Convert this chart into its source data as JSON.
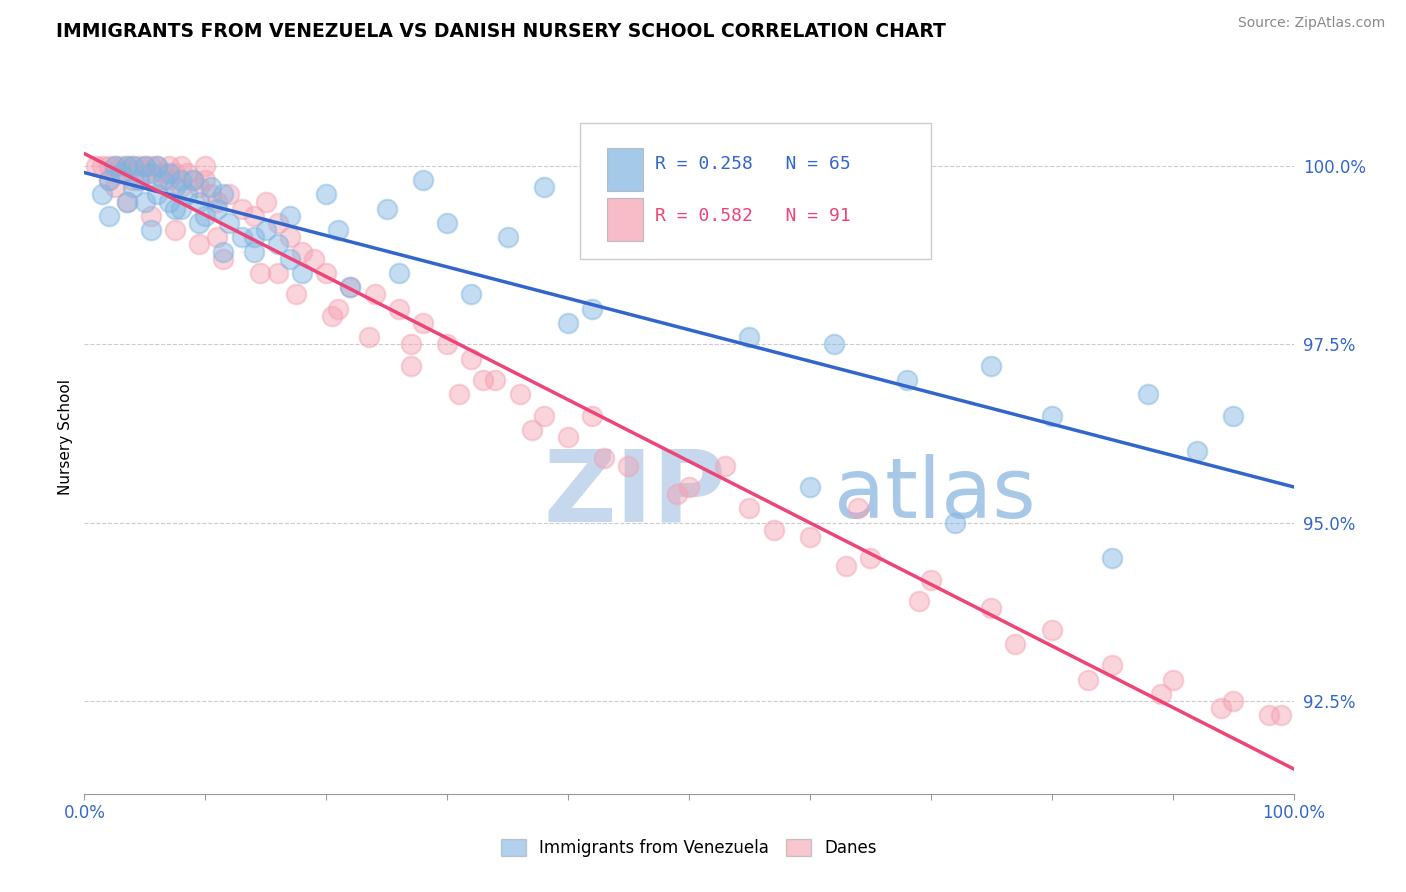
{
  "title": "IMMIGRANTS FROM VENEZUELA VS DANISH NURSERY SCHOOL CORRELATION CHART",
  "source_text": "Source: ZipAtlas.com",
  "ylabel": "Nursery School",
  "xlim": [
    0.0,
    100.0
  ],
  "ylim": [
    91.2,
    101.2
  ],
  "yticks": [
    92.5,
    95.0,
    97.5,
    100.0
  ],
  "ytick_labels": [
    "92.5%",
    "95.0%",
    "97.5%",
    "100.0%"
  ],
  "legend_r_blue": "R = 0.258",
  "legend_n_blue": "N = 65",
  "legend_r_pink": "R = 0.582",
  "legend_n_pink": "N = 91",
  "blue_color": "#7EB3E0",
  "pink_color": "#F4A0B0",
  "blue_line_color": "#3366CC",
  "pink_line_color": "#EE4477",
  "watermark_zip_color": "#C5D8EE",
  "watermark_atlas_color": "#A8C8E8",
  "blue_scatter_x": [
    1.5,
    2.0,
    2.5,
    3.0,
    3.5,
    4.0,
    4.0,
    4.5,
    5.0,
    5.0,
    5.5,
    6.0,
    6.0,
    6.5,
    7.0,
    7.0,
    7.5,
    8.0,
    8.0,
    8.5,
    9.0,
    9.5,
    10.0,
    10.5,
    11.0,
    11.5,
    12.0,
    13.0,
    14.0,
    15.0,
    16.0,
    17.0,
    18.0,
    20.0,
    22.0,
    25.0,
    28.0,
    30.0,
    35.0,
    38.0,
    2.0,
    3.5,
    5.5,
    7.5,
    9.5,
    11.5,
    14.0,
    17.0,
    21.0,
    26.0,
    32.0,
    40.0,
    50.0,
    62.0,
    75.0,
    88.0,
    95.0,
    42.0,
    55.0,
    68.0,
    80.0,
    92.0,
    60.0,
    72.0,
    85.0
  ],
  "blue_scatter_y": [
    99.6,
    99.8,
    100.0,
    99.9,
    100.0,
    99.7,
    100.0,
    99.8,
    99.5,
    100.0,
    99.9,
    99.6,
    100.0,
    99.8,
    99.5,
    99.9,
    99.7,
    99.4,
    99.8,
    99.6,
    99.8,
    99.5,
    99.3,
    99.7,
    99.4,
    99.6,
    99.2,
    99.0,
    98.8,
    99.1,
    98.9,
    98.7,
    98.5,
    99.6,
    98.3,
    99.4,
    99.8,
    99.2,
    99.0,
    99.7,
    99.3,
    99.5,
    99.1,
    99.4,
    99.2,
    98.8,
    99.0,
    99.3,
    99.1,
    98.5,
    98.2,
    97.8,
    98.9,
    97.5,
    97.2,
    96.8,
    96.5,
    98.0,
    97.6,
    97.0,
    96.5,
    96.0,
    95.5,
    95.0,
    94.5
  ],
  "pink_scatter_x": [
    1.0,
    1.5,
    2.0,
    2.0,
    2.5,
    3.0,
    3.0,
    3.5,
    4.0,
    4.0,
    4.5,
    5.0,
    5.0,
    5.5,
    6.0,
    6.0,
    6.5,
    7.0,
    7.0,
    7.5,
    8.0,
    8.0,
    8.5,
    9.0,
    9.5,
    10.0,
    10.0,
    10.5,
    11.0,
    12.0,
    13.0,
    14.0,
    15.0,
    16.0,
    17.0,
    18.0,
    19.0,
    20.0,
    22.0,
    24.0,
    26.0,
    28.0,
    30.0,
    32.0,
    34.0,
    36.0,
    38.0,
    40.0,
    45.0,
    50.0,
    55.0,
    60.0,
    65.0,
    70.0,
    75.0,
    80.0,
    85.0,
    90.0,
    95.0,
    99.0,
    2.5,
    3.5,
    5.5,
    7.5,
    9.5,
    11.5,
    14.5,
    17.5,
    20.5,
    23.5,
    27.0,
    31.0,
    37.0,
    43.0,
    49.0,
    57.0,
    63.0,
    69.0,
    77.0,
    83.0,
    89.0,
    94.0,
    98.0,
    11.0,
    16.0,
    21.0,
    27.0,
    33.0,
    42.0,
    53.0,
    64.0
  ],
  "pink_scatter_y": [
    100.0,
    100.0,
    100.0,
    99.8,
    100.0,
    100.0,
    99.9,
    100.0,
    100.0,
    99.8,
    100.0,
    100.0,
    99.9,
    100.0,
    100.0,
    99.8,
    99.9,
    100.0,
    99.8,
    99.9,
    100.0,
    99.7,
    99.9,
    99.8,
    99.7,
    100.0,
    99.8,
    99.6,
    99.5,
    99.6,
    99.4,
    99.3,
    99.5,
    99.2,
    99.0,
    98.8,
    98.7,
    98.5,
    98.3,
    98.2,
    98.0,
    97.8,
    97.5,
    97.3,
    97.0,
    96.8,
    96.5,
    96.2,
    95.8,
    95.5,
    95.2,
    94.8,
    94.5,
    94.2,
    93.8,
    93.5,
    93.0,
    92.8,
    92.5,
    92.3,
    99.7,
    99.5,
    99.3,
    99.1,
    98.9,
    98.7,
    98.5,
    98.2,
    97.9,
    97.6,
    97.2,
    96.8,
    96.3,
    95.9,
    95.4,
    94.9,
    94.4,
    93.9,
    93.3,
    92.8,
    92.6,
    92.4,
    92.3,
    99.0,
    98.5,
    98.0,
    97.5,
    97.0,
    96.5,
    95.8,
    95.2
  ]
}
